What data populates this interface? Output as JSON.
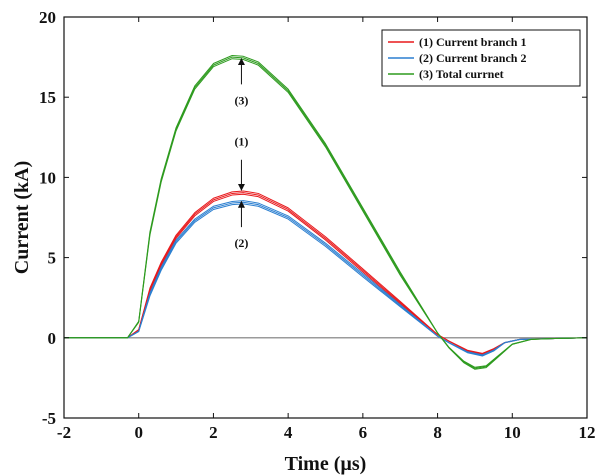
{
  "chart_data": {
    "type": "line",
    "xlabel": "Time (µs)",
    "ylabel": "Current (kA)",
    "xlim": [
      -2,
      12
    ],
    "ylim": [
      -5,
      20
    ],
    "xticks": [
      -2,
      0,
      2,
      4,
      6,
      8,
      10,
      12
    ],
    "yticks": [
      -5,
      0,
      5,
      10,
      15,
      20
    ],
    "grid": false,
    "legend_position": "top-right",
    "reference_line_y": 0,
    "series": [
      {
        "name": "(1) Current branch 1",
        "color": "#e8191c",
        "x": [
          -2,
          -1,
          -0.3,
          0,
          0.3,
          0.6,
          1,
          1.5,
          2,
          2.5,
          2.8,
          3.2,
          4,
          5,
          6,
          7,
          8,
          8.3,
          8.8,
          9.2,
          9.5,
          9.8,
          10.2,
          11,
          12
        ],
        "y": [
          0,
          0,
          0,
          0.5,
          3.0,
          4.6,
          6.3,
          7.7,
          8.6,
          9.0,
          9.05,
          8.9,
          8.0,
          6.2,
          4.2,
          2.2,
          0.2,
          -0.2,
          -0.8,
          -1.0,
          -0.7,
          -0.3,
          -0.1,
          -0.05,
          0
        ]
      },
      {
        "name": "(2) Current branch 2",
        "color": "#2b7fd0",
        "x": [
          -2,
          -1,
          -0.3,
          0,
          0.3,
          0.6,
          1,
          1.5,
          2,
          2.5,
          2.8,
          3.2,
          4,
          5,
          6,
          7,
          8,
          8.3,
          8.8,
          9.2,
          9.5,
          9.8,
          10.2,
          11,
          12
        ],
        "y": [
          0,
          0,
          0,
          0.4,
          2.7,
          4.3,
          6.0,
          7.3,
          8.1,
          8.4,
          8.45,
          8.3,
          7.5,
          5.8,
          3.9,
          2.0,
          0.1,
          -0.3,
          -0.9,
          -1.1,
          -0.8,
          -0.3,
          -0.1,
          -0.05,
          0
        ]
      },
      {
        "name": "(3) Total currnet",
        "color": "#2e9b1f",
        "x": [
          -2,
          -1,
          -0.3,
          0,
          0.3,
          0.6,
          1,
          1.5,
          2,
          2.5,
          2.8,
          3.2,
          4,
          5,
          6,
          7,
          8,
          8.3,
          8.7,
          9.0,
          9.3,
          9.6,
          10.0,
          10.5,
          11,
          12
        ],
        "y": [
          0,
          0,
          0,
          1.0,
          6.5,
          9.8,
          13.0,
          15.6,
          17.0,
          17.5,
          17.45,
          17.1,
          15.4,
          12.0,
          8.0,
          4.0,
          0.3,
          -0.6,
          -1.5,
          -1.9,
          -1.8,
          -1.2,
          -0.4,
          -0.1,
          -0.05,
          0
        ]
      }
    ],
    "annotations": [
      {
        "label": "(1)",
        "text_x": 2.75,
        "text_y": 12.25,
        "arrow_from_y": 11.1,
        "arrow_to_y": 9.2
      },
      {
        "label": "(2)",
        "text_x": 2.75,
        "text_y": 5.9,
        "arrow_from_y": 6.9,
        "arrow_to_y": 8.5
      },
      {
        "label": "(3)",
        "text_x": 2.75,
        "text_y": 14.8,
        "arrow_from_y": 15.8,
        "arrow_to_y": 17.4
      }
    ]
  }
}
